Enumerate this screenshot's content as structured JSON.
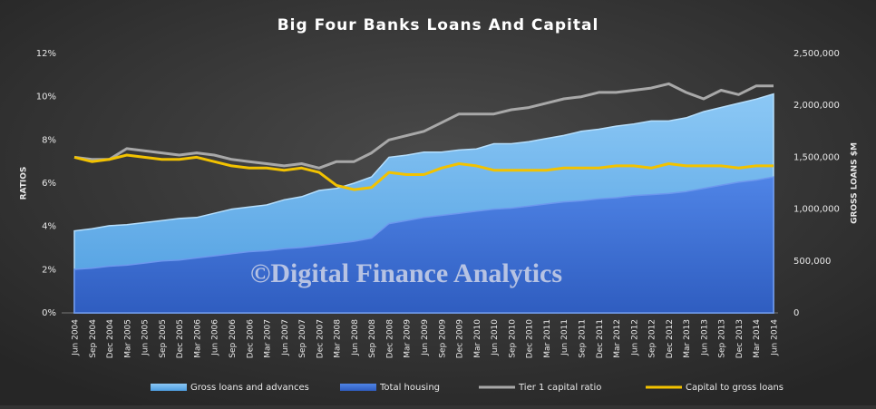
{
  "chart_data": {
    "type": "area-line",
    "title": "Big Four Banks Loans And Capital",
    "y_label": "RATIOS",
    "y2_label": "GROSS LOANS $M",
    "annotation": "©Digital Finance Analytics",
    "categories": [
      "Jun 2004",
      "Sep 2004",
      "Dec 2004",
      "Mar 2005",
      "Jun 2005",
      "Sep 2005",
      "Dec 2005",
      "Mar 2006",
      "Jun 2006",
      "Sep 2006",
      "Dec 2006",
      "Mar 2007",
      "Jun 2007",
      "Sep 2007",
      "Dec 2007",
      "Mar 2008",
      "Jun 2008",
      "Sep 2008",
      "Dec 2008",
      "Mar 2009",
      "Jun 2009",
      "Sep 2009",
      "Dec 2009",
      "Mar 2010",
      "Jun 2010",
      "Sep 2010",
      "Dec 2010",
      "Mar 2011",
      "Jun 2011",
      "Sep 2011",
      "Dec 2011",
      "Mar 2012",
      "Jun 2012",
      "Sep 2012",
      "Dec 2012",
      "Mar 2013",
      "Jun 2013",
      "Sep 2013",
      "Dec 2013",
      "Mar 2014",
      "Jun 2014"
    ],
    "series": [
      {
        "name": "Gross loans and advances",
        "color": "#5aaaea",
        "kind": "area",
        "axis": "y2",
        "values": [
          790000,
          810000,
          840000,
          850000,
          870000,
          890000,
          910000,
          920000,
          960000,
          1000000,
          1020000,
          1040000,
          1090000,
          1120000,
          1180000,
          1200000,
          1250000,
          1310000,
          1500000,
          1520000,
          1550000,
          1550000,
          1570000,
          1580000,
          1630000,
          1630000,
          1650000,
          1680000,
          1710000,
          1750000,
          1770000,
          1800000,
          1820000,
          1850000,
          1850000,
          1880000,
          1940000,
          1980000,
          2020000,
          2060000,
          2110000
        ]
      },
      {
        "name": "Total housing",
        "color": "#3f72d6",
        "kind": "area",
        "axis": "y2",
        "values": [
          420000,
          430000,
          450000,
          460000,
          480000,
          500000,
          510000,
          530000,
          550000,
          570000,
          590000,
          600000,
          620000,
          630000,
          650000,
          670000,
          690000,
          720000,
          860000,
          890000,
          920000,
          940000,
          960000,
          980000,
          1000000,
          1010000,
          1030000,
          1050000,
          1070000,
          1080000,
          1100000,
          1110000,
          1130000,
          1140000,
          1150000,
          1170000,
          1200000,
          1230000,
          1260000,
          1280000,
          1310000
        ]
      },
      {
        "name": "Tier 1 capital ratio",
        "color": "#a8a8a8",
        "kind": "line",
        "axis": "y",
        "values": [
          7.2,
          7.1,
          7.1,
          7.6,
          7.5,
          7.4,
          7.3,
          7.4,
          7.3,
          7.1,
          7.0,
          6.9,
          6.8,
          6.9,
          6.7,
          7.0,
          7.0,
          7.4,
          8.0,
          8.2,
          8.4,
          8.8,
          9.2,
          9.2,
          9.2,
          9.4,
          9.5,
          9.7,
          9.9,
          10.0,
          10.2,
          10.2,
          10.3,
          10.4,
          10.6,
          10.2,
          9.9,
          10.3,
          10.1,
          10.5,
          10.5
        ]
      },
      {
        "name": "Capital to gross loans",
        "color": "#f2c200",
        "kind": "line",
        "axis": "y",
        "values": [
          7.2,
          7.0,
          7.1,
          7.3,
          7.2,
          7.1,
          7.1,
          7.2,
          7.0,
          6.8,
          6.7,
          6.7,
          6.6,
          6.7,
          6.5,
          5.9,
          5.7,
          5.8,
          6.5,
          6.4,
          6.4,
          6.7,
          6.9,
          6.8,
          6.6,
          6.6,
          6.6,
          6.6,
          6.7,
          6.7,
          6.7,
          6.8,
          6.8,
          6.7,
          6.9,
          6.8,
          6.8,
          6.8,
          6.7,
          6.8,
          6.8
        ]
      }
    ],
    "ylim": [
      0,
      12
    ],
    "yticks": [
      {
        "value": 0,
        "label": "0%"
      },
      {
        "value": 2,
        "label": "2%"
      },
      {
        "value": 4,
        "label": "4%"
      },
      {
        "value": 6,
        "label": "6%"
      },
      {
        "value": 8,
        "label": "8%"
      },
      {
        "value": 10,
        "label": "10%"
      },
      {
        "value": 12,
        "label": "12%"
      }
    ],
    "y2lim": [
      0,
      2500000
    ],
    "y2ticks": [
      0,
      {
        "value": 500000,
        "label": "500,000"
      },
      {
        "value": 1000000,
        "label": "1,000,000"
      },
      {
        "value": 1500000,
        "label": "1,500,000"
      },
      {
        "value": 2000000,
        "label": "2,000,000"
      },
      {
        "value": 2500000,
        "label": "2,500,000"
      }
    ],
    "grid": false,
    "legend": "bottom"
  }
}
